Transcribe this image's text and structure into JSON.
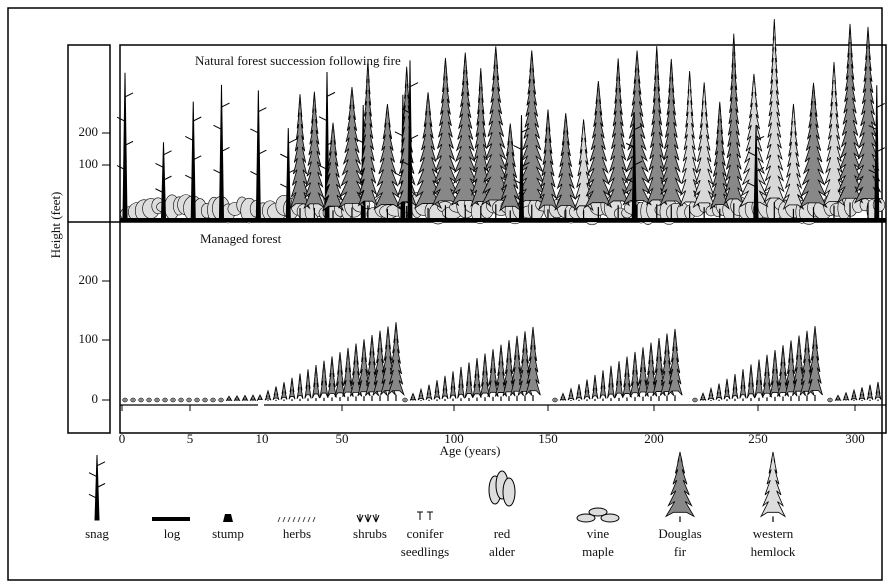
{
  "top_panel": {
    "title": "Natural forest succession following fire"
  },
  "bottom_panel": {
    "title": "Managed forest"
  },
  "y_axis": {
    "label": "Height (feet)",
    "top_ticks": [
      "200",
      "100"
    ],
    "bottom_ticks": [
      "200",
      "100",
      "0"
    ]
  },
  "x_axis": {
    "label": "Age (years)",
    "ticks": [
      "0",
      "5",
      "10",
      "50",
      "100",
      "150",
      "200",
      "250",
      "300"
    ]
  },
  "legend": [
    {
      "lines": [
        "snag"
      ]
    },
    {
      "lines": [
        "log"
      ]
    },
    {
      "lines": [
        "stump"
      ]
    },
    {
      "lines": [
        "herbs"
      ]
    },
    {
      "lines": [
        "shrubs"
      ]
    },
    {
      "lines": [
        "conifer",
        "seedlings"
      ]
    },
    {
      "lines": [
        "red",
        "alder"
      ]
    },
    {
      "lines": [
        "vine",
        "maple"
      ]
    },
    {
      "lines": [
        "Douglas",
        "fir"
      ]
    },
    {
      "lines": [
        "western",
        "hemlock"
      ]
    }
  ]
}
